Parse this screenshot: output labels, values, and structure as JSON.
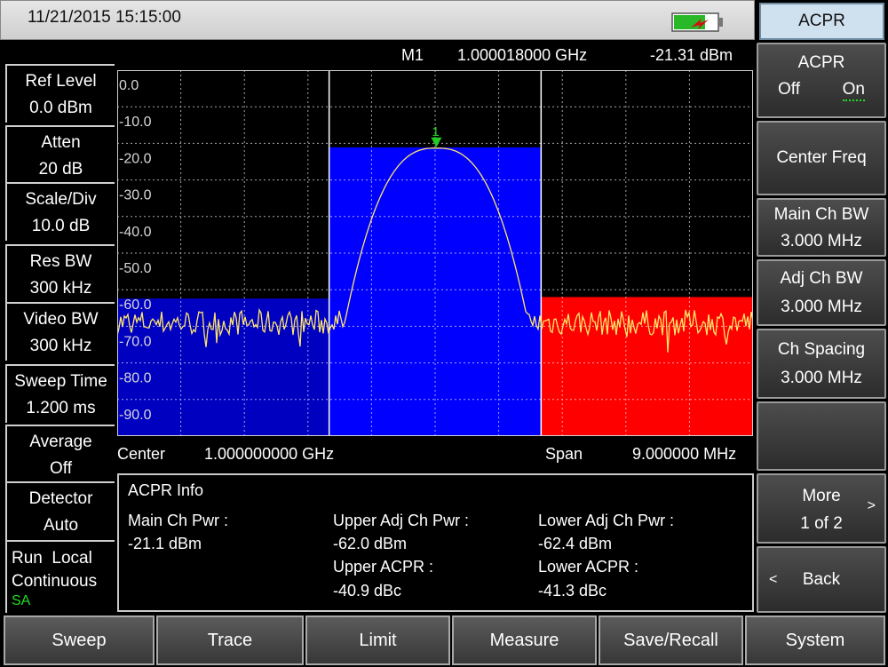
{
  "status": {
    "datetime": "11/21/2015  15:15:00",
    "mode_tab": "ACPR"
  },
  "marker": {
    "name": "M1",
    "frequency": "1.000018000 GHz",
    "level": "-21.31 dBm",
    "number": "1"
  },
  "left_panel": {
    "ref_level": {
      "label": "Ref Level",
      "value": "0.0 dBm"
    },
    "atten": {
      "label": "Atten",
      "value": "20 dB"
    },
    "scale_div": {
      "label": "Scale/Div",
      "value": "10.0 dB"
    },
    "res_bw": {
      "label": "Res BW",
      "value": "300 kHz"
    },
    "video_bw": {
      "label": "Video BW",
      "value": "300 kHz"
    },
    "sweep_time": {
      "label": "Sweep Time",
      "value": "1.200 ms"
    },
    "average": {
      "label": "Average",
      "value": "Off"
    },
    "detector": {
      "label": "Detector",
      "value": "Auto"
    },
    "run_state": {
      "line1": "Run  Local",
      "line2": "Continuous",
      "mode": "SA"
    }
  },
  "softkeys": {
    "acpr": {
      "label": "ACPR",
      "off": "Off",
      "on": "On"
    },
    "center_freq": "Center Freq",
    "main_ch_bw": {
      "label": "Main Ch BW",
      "value": "3.000 MHz"
    },
    "adj_ch_bw": {
      "label": "Adj Ch BW",
      "value": "3.000 MHz"
    },
    "ch_spacing": {
      "label": "Ch Spacing",
      "value": "3.000 MHz"
    },
    "more": {
      "label": "More",
      "page": "1 of 2",
      "arrow": ">"
    },
    "back": {
      "arrow": "<",
      "label": "Back"
    }
  },
  "bottom_menu": [
    "Sweep",
    "Trace",
    "Limit",
    "Measure",
    "Save/Recall",
    "System"
  ],
  "frequency": {
    "center_label": "Center",
    "center_value": "1.000000000 GHz",
    "span_label": "Span",
    "span_value": "9.000000 MHz"
  },
  "acpr_info": {
    "title": "ACPR Info",
    "main_ch_pwr_label": "Main Ch Pwr :",
    "main_ch_pwr_value": "-21.1 dBm",
    "upper_adj_label": "Upper Adj Ch Pwr :",
    "upper_adj_value": "-62.0 dBm",
    "upper_acpr_label": "Upper ACPR :",
    "upper_acpr_value": "-40.9 dBc",
    "lower_adj_label": "Lower Adj Ch Pwr :",
    "lower_adj_value": "-62.4 dBm",
    "lower_acpr_label": "Lower ACPR :",
    "lower_acpr_value": "-41.3 dBc"
  },
  "display": {
    "y_ticks": [
      "0.0",
      "-10.0",
      "-20.0",
      "-30.0",
      "-40.0",
      "-50.0",
      "-60.0",
      "-70.0",
      "-80.0",
      "-90.0"
    ],
    "ref_level_dbm": 0,
    "db_per_div": 10,
    "span_mhz": 9,
    "main_channel": {
      "from_mhz": -1.5,
      "to_mhz": 1.5,
      "level_dbm": -21.1,
      "color": "#0000ff"
    },
    "lower_channel": {
      "from_mhz": -4.5,
      "to_mhz": -1.5,
      "level_dbm": -62.4,
      "color": "#0000c0"
    },
    "upper_channel": {
      "from_mhz": 1.5,
      "to_mhz": 4.5,
      "level_dbm": -62.0,
      "color": "#ff0000"
    },
    "trace_color": "#ffe66b",
    "marker_color": "#22cc22",
    "noise_floor_dbm": -69,
    "peak_dbm": -21.3,
    "peak_offset_mhz": 0.018
  },
  "colors": {
    "mode_text": "#22dd22",
    "softkey_underline": "#22dd22"
  }
}
